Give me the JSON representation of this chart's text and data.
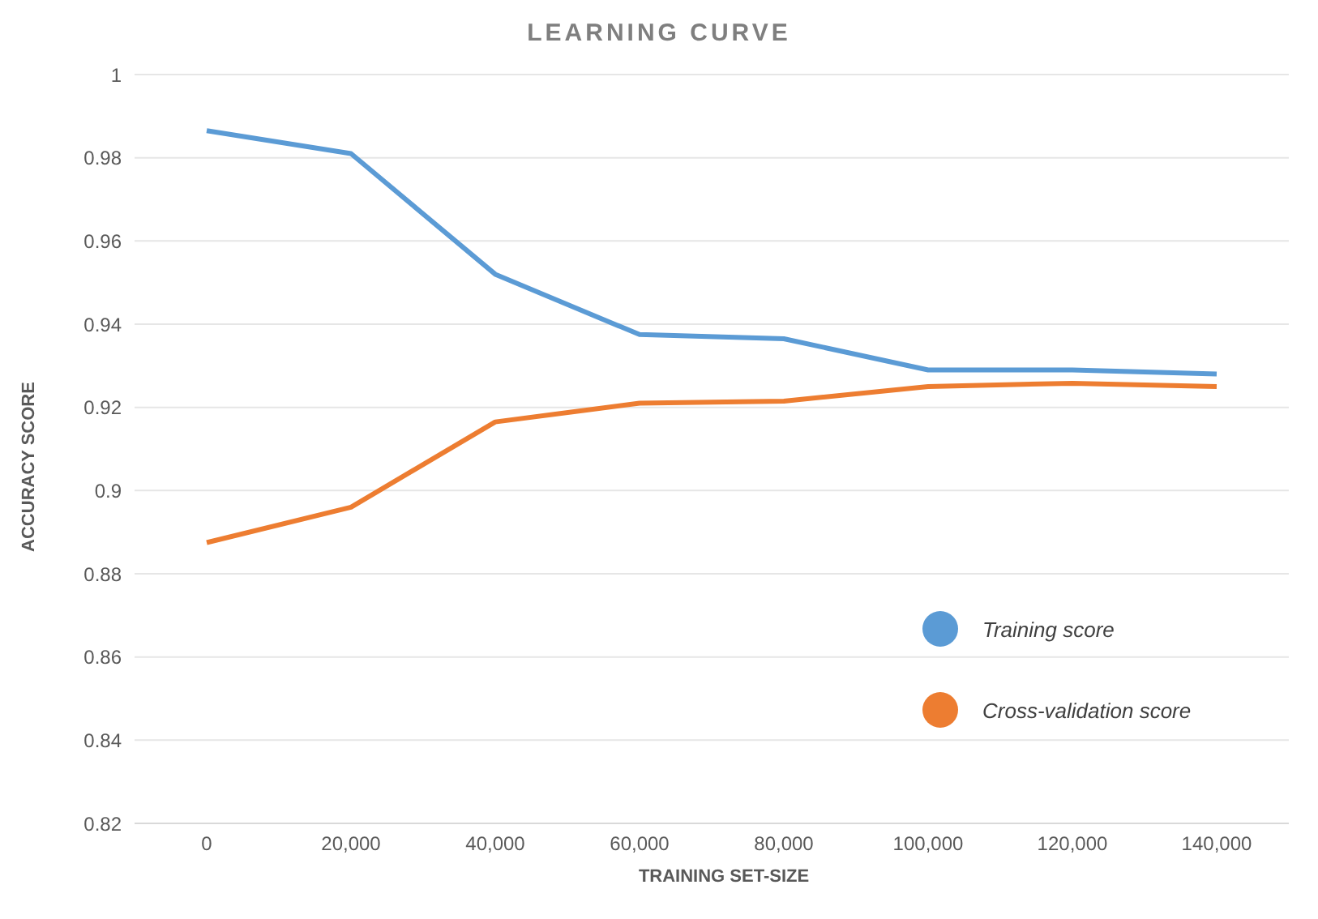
{
  "chart_data": {
    "type": "line",
    "title": "LEARNING CURVE",
    "xlabel": "TRAINING SET-SIZE",
    "ylabel": "ACCURACY SCORE",
    "x": [
      0,
      20000,
      40000,
      60000,
      80000,
      100000,
      120000,
      140000
    ],
    "series": [
      {
        "name": "Training score",
        "color": "#5b9bd5",
        "values": [
          0.9865,
          0.981,
          0.952,
          0.9375,
          0.9365,
          0.929,
          0.929,
          0.928
        ]
      },
      {
        "name": "Cross-validation score",
        "color": "#ed7d31",
        "values": [
          0.8875,
          0.896,
          0.9165,
          0.921,
          0.9215,
          0.925,
          0.9258,
          0.925
        ]
      }
    ],
    "xlim": [
      -10000,
      150000
    ],
    "xticks": [
      {
        "value": 0,
        "label": "0"
      },
      {
        "value": 20000,
        "label": "20,000"
      },
      {
        "value": 40000,
        "label": "40,000"
      },
      {
        "value": 60000,
        "label": "60,000"
      },
      {
        "value": 80000,
        "label": "80,000"
      },
      {
        "value": 100000,
        "label": "100,000"
      },
      {
        "value": 120000,
        "label": "120,000"
      },
      {
        "value": 140000,
        "label": "140,000"
      }
    ],
    "ylim": [
      0.82,
      1
    ],
    "yticks": [
      0.82,
      0.84,
      0.86,
      0.88,
      0.9,
      0.92,
      0.94,
      0.96,
      0.98,
      1
    ],
    "grid": "y",
    "legend": "right",
    "marker": "none",
    "line_style": "solid"
  }
}
